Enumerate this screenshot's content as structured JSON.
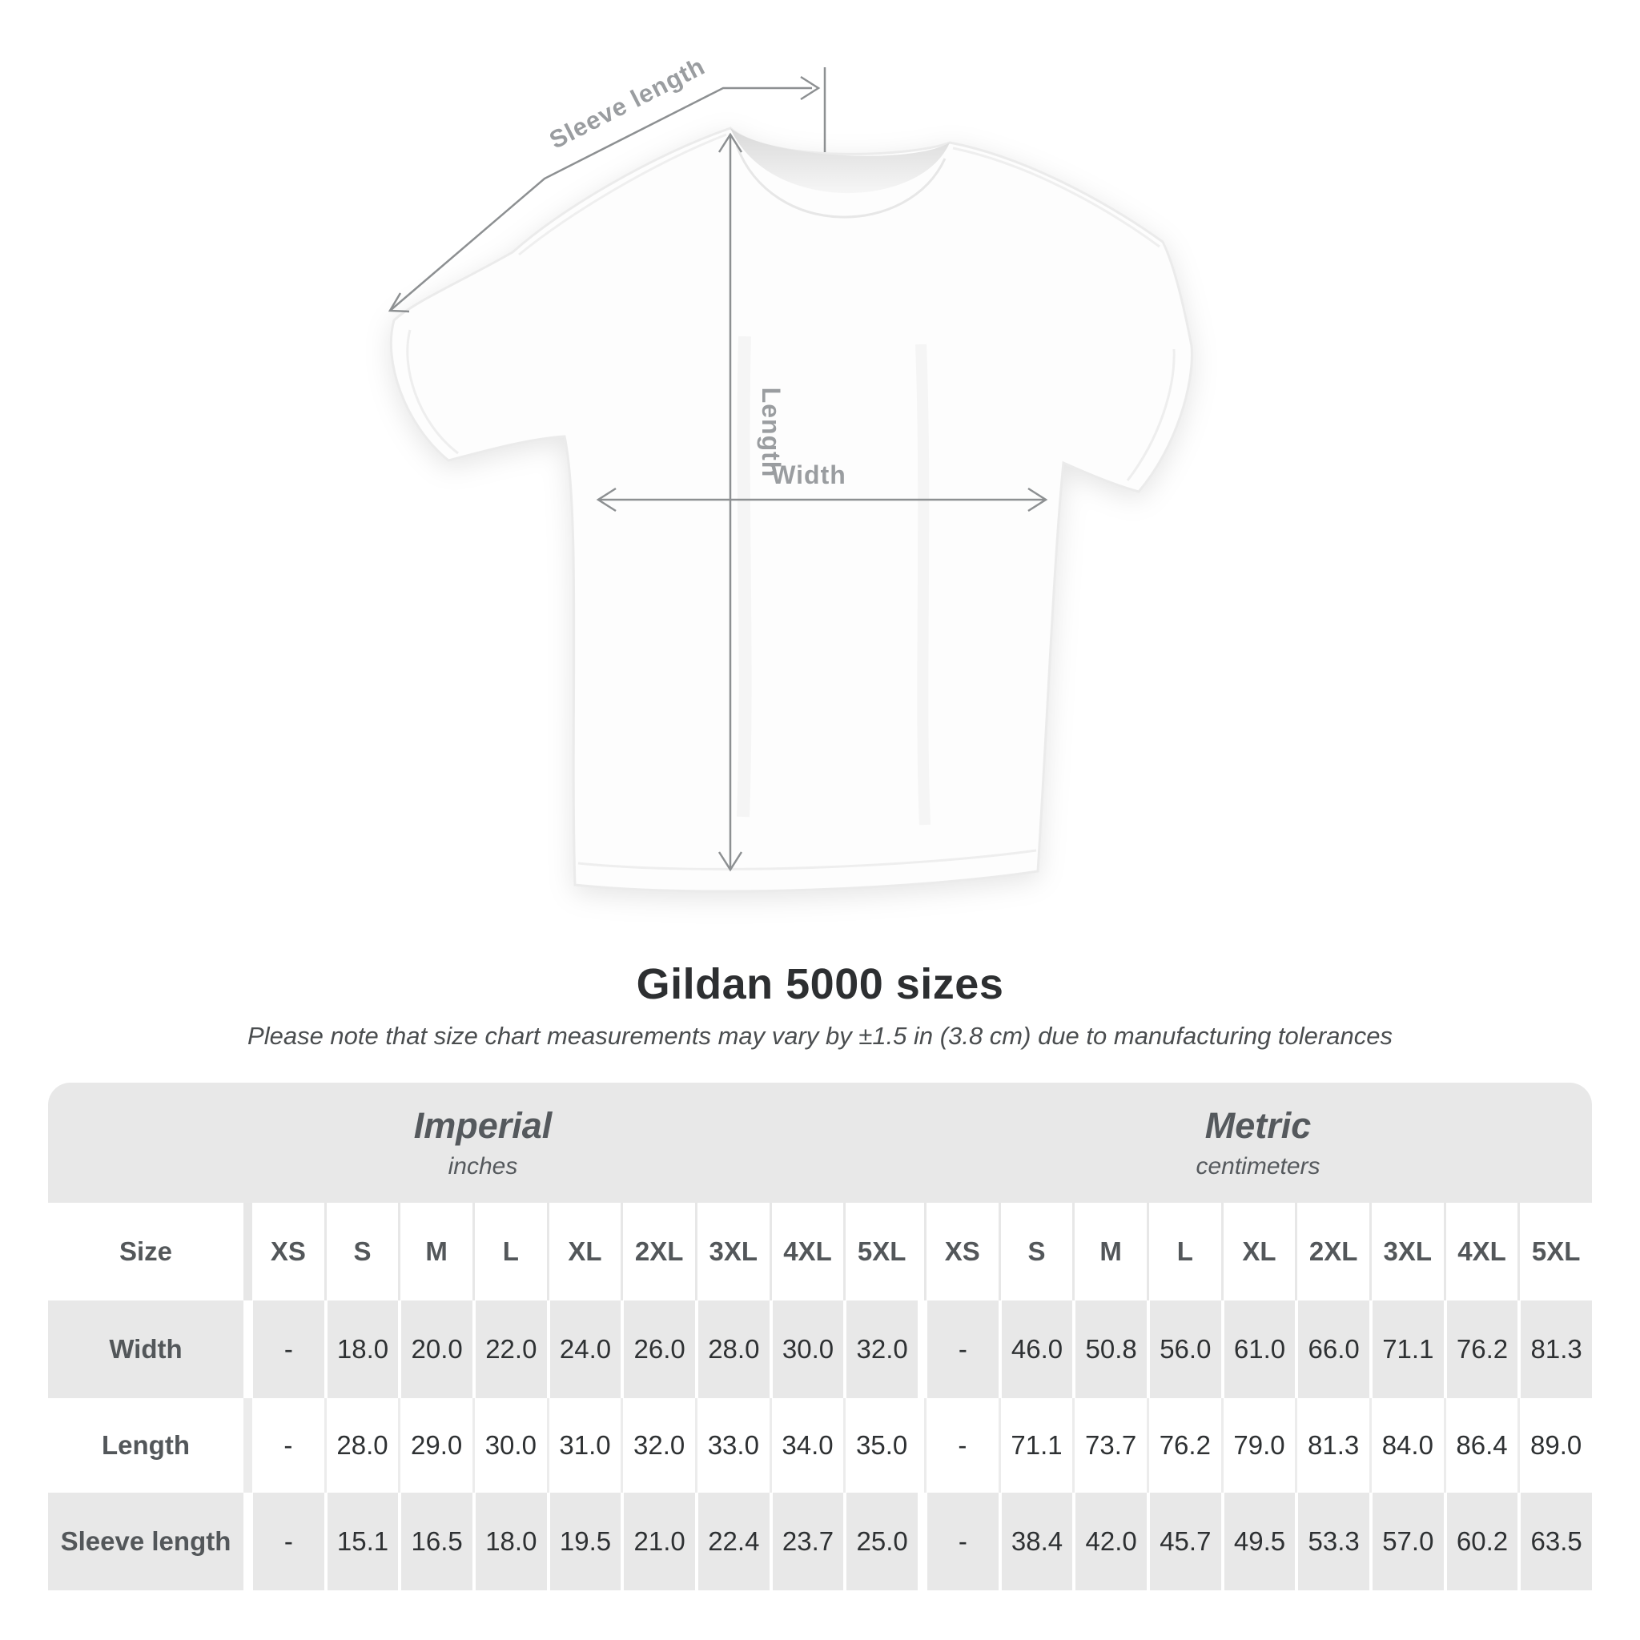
{
  "diagram": {
    "sleeve_label": "Sleeve length",
    "length_label": "Length",
    "width_label": "Width",
    "line_color": "#8d9092",
    "label_color": "#9a9da0",
    "shirt_fill": "#fdfdfd",
    "shirt_edge": "#ebebeb"
  },
  "title": "Gildan 5000 sizes",
  "subtitle": "Please note that size chart measurements may vary by ±1.5 in (3.8 cm) due to manufacturing tolerances",
  "table": {
    "groups": [
      {
        "name": "Imperial",
        "unit": "inches"
      },
      {
        "name": "Metric",
        "unit": "centimeters"
      }
    ],
    "size_label": "Size",
    "sizes": [
      "XS",
      "S",
      "M",
      "L",
      "XL",
      "2XL",
      "3XL",
      "4XL",
      "5XL"
    ],
    "rows": [
      {
        "label": "Width",
        "imperial": [
          "-",
          "18.0",
          "20.0",
          "22.0",
          "24.0",
          "26.0",
          "28.0",
          "30.0",
          "32.0"
        ],
        "metric": [
          "-",
          "46.0",
          "50.8",
          "56.0",
          "61.0",
          "66.0",
          "71.1",
          "76.2",
          "81.3"
        ]
      },
      {
        "label": "Length",
        "imperial": [
          "-",
          "28.0",
          "29.0",
          "30.0",
          "31.0",
          "32.0",
          "33.0",
          "34.0",
          "35.0"
        ],
        "metric": [
          "-",
          "71.1",
          "73.7",
          "76.2",
          "79.0",
          "81.3",
          "84.0",
          "86.4",
          "89.0"
        ]
      },
      {
        "label": "Sleeve length",
        "imperial": [
          "-",
          "15.1",
          "16.5",
          "18.0",
          "19.5",
          "21.0",
          "22.4",
          "23.7",
          "25.0"
        ],
        "metric": [
          "-",
          "38.4",
          "42.0",
          "45.7",
          "49.5",
          "53.3",
          "57.0",
          "60.2",
          "63.5"
        ]
      }
    ],
    "row_gray": "#e8e8e8",
    "row_white": "#ffffff"
  },
  "chart_data": {
    "type": "table",
    "title": "Gildan 5000 sizes",
    "note": "Please note that size chart measurements may vary by ±1.5 in (3.8 cm) due to manufacturing tolerances",
    "column_groups": [
      {
        "name": "Imperial",
        "unit": "inches",
        "columns": [
          "XS",
          "S",
          "M",
          "L",
          "XL",
          "2XL",
          "3XL",
          "4XL",
          "5XL"
        ]
      },
      {
        "name": "Metric",
        "unit": "centimeters",
        "columns": [
          "XS",
          "S",
          "M",
          "L",
          "XL",
          "2XL",
          "3XL",
          "4XL",
          "5XL"
        ]
      }
    ],
    "rows": [
      {
        "measure": "Width",
        "imperial_in": [
          null,
          18.0,
          20.0,
          22.0,
          24.0,
          26.0,
          28.0,
          30.0,
          32.0
        ],
        "metric_cm": [
          null,
          46.0,
          50.8,
          56.0,
          61.0,
          66.0,
          71.1,
          76.2,
          81.3
        ]
      },
      {
        "measure": "Length",
        "imperial_in": [
          null,
          28.0,
          29.0,
          30.0,
          31.0,
          32.0,
          33.0,
          34.0,
          35.0
        ],
        "metric_cm": [
          null,
          71.1,
          73.7,
          76.2,
          79.0,
          81.3,
          84.0,
          86.4,
          89.0
        ]
      },
      {
        "measure": "Sleeve length",
        "imperial_in": [
          null,
          15.1,
          16.5,
          18.0,
          19.5,
          21.0,
          22.4,
          23.7,
          25.0
        ],
        "metric_cm": [
          null,
          38.4,
          42.0,
          45.7,
          49.5,
          53.3,
          57.0,
          60.2,
          63.5
        ]
      }
    ]
  }
}
